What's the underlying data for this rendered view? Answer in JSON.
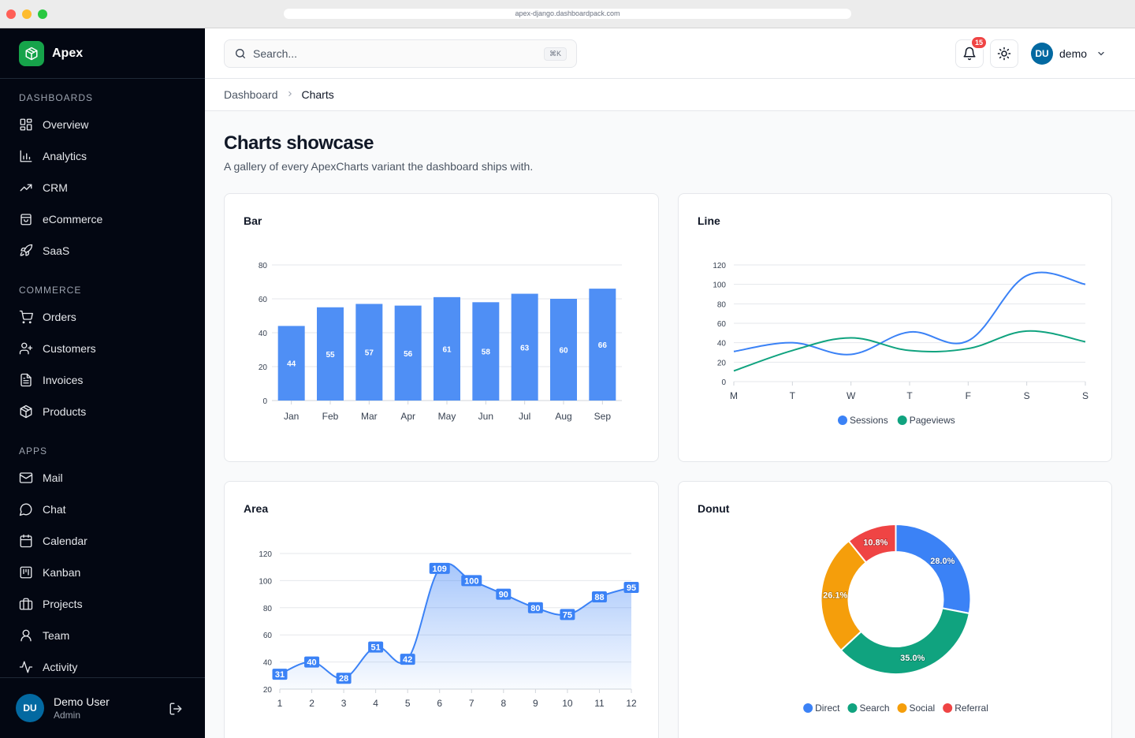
{
  "browser": {
    "url": "apex-django.dashboardpack.com"
  },
  "brand": {
    "name": "Apex"
  },
  "sidebar": {
    "sections": [
      {
        "label": "DASHBOARDS",
        "items": [
          {
            "label": "Overview",
            "icon": "grid-icon"
          },
          {
            "label": "Analytics",
            "icon": "bar-chart-icon"
          },
          {
            "label": "CRM",
            "icon": "trending-up-icon"
          },
          {
            "label": "eCommerce",
            "icon": "shopping-bag-icon"
          },
          {
            "label": "SaaS",
            "icon": "rocket-icon"
          }
        ]
      },
      {
        "label": "COMMERCE",
        "items": [
          {
            "label": "Orders",
            "icon": "cart-icon"
          },
          {
            "label": "Customers",
            "icon": "user-plus-icon"
          },
          {
            "label": "Invoices",
            "icon": "file-text-icon"
          },
          {
            "label": "Products",
            "icon": "package-icon"
          }
        ]
      },
      {
        "label": "APPS",
        "items": [
          {
            "label": "Mail",
            "icon": "mail-icon"
          },
          {
            "label": "Chat",
            "icon": "chat-icon"
          },
          {
            "label": "Calendar",
            "icon": "calendar-icon"
          },
          {
            "label": "Kanban",
            "icon": "kanban-icon"
          },
          {
            "label": "Projects",
            "icon": "briefcase-icon"
          },
          {
            "label": "Team",
            "icon": "user-icon"
          },
          {
            "label": "Activity",
            "icon": "activity-icon"
          }
        ]
      }
    ],
    "user": {
      "initials": "DU",
      "name": "Demo User",
      "role": "Admin"
    }
  },
  "topbar": {
    "search_placeholder": "Search...",
    "search_shortcut": "⌘K",
    "notification_count": "15",
    "user_initials": "DU",
    "user_name": "demo"
  },
  "breadcrumb": {
    "parent": "Dashboard",
    "current": "Charts"
  },
  "page": {
    "title": "Charts showcase",
    "subtitle": "A gallery of every ApexCharts variant the dashboard ships with."
  },
  "colors": {
    "blue": "#3b82f6",
    "green": "#10a37f",
    "orange": "#f59e0b",
    "red": "#ef4444"
  },
  "chart_data": [
    {
      "type": "bar",
      "title": "Bar",
      "categories": [
        "Jan",
        "Feb",
        "Mar",
        "Apr",
        "May",
        "Jun",
        "Jul",
        "Aug",
        "Sep"
      ],
      "values": [
        44,
        55,
        57,
        56,
        61,
        58,
        63,
        60,
        66
      ],
      "ylim": [
        0,
        80
      ],
      "yticks": [
        0,
        20,
        40,
        60,
        80
      ],
      "color": "#4f8ff5",
      "grid": true
    },
    {
      "type": "line",
      "title": "Line",
      "categories": [
        "M",
        "T",
        "W",
        "T",
        "F",
        "S",
        "S"
      ],
      "series": [
        {
          "name": "Sessions",
          "color": "#3b82f6",
          "values": [
            31,
            40,
            28,
            51,
            42,
            109,
            100
          ]
        },
        {
          "name": "Pageviews",
          "color": "#10a37f",
          "values": [
            11,
            32,
            45,
            32,
            34,
            52,
            41
          ]
        }
      ],
      "ylim": [
        0,
        120
      ],
      "yticks": [
        0,
        20,
        40,
        60,
        80,
        100,
        120
      ],
      "legend": "bottom",
      "grid": true
    },
    {
      "type": "area",
      "title": "Area",
      "categories": [
        "1",
        "2",
        "3",
        "4",
        "5",
        "6",
        "7",
        "8",
        "9",
        "10",
        "11",
        "12"
      ],
      "values": [
        31,
        40,
        28,
        51,
        42,
        109,
        100,
        90,
        80,
        75,
        88,
        95
      ],
      "ylim": [
        20,
        120
      ],
      "yticks": [
        20,
        40,
        60,
        80,
        100,
        120
      ],
      "color": "#3b82f6",
      "grid": true
    },
    {
      "type": "pie",
      "title": "Donut",
      "labels": [
        "Direct",
        "Search",
        "Social",
        "Referral"
      ],
      "values": [
        28.0,
        35.0,
        26.1,
        10.8
      ],
      "value_labels": [
        "28.0%",
        "35.0%",
        "26.1%",
        "10.8%"
      ],
      "colors": [
        "#3b82f6",
        "#10a37f",
        "#f59e0b",
        "#ef4444"
      ],
      "legend": "bottom"
    }
  ]
}
